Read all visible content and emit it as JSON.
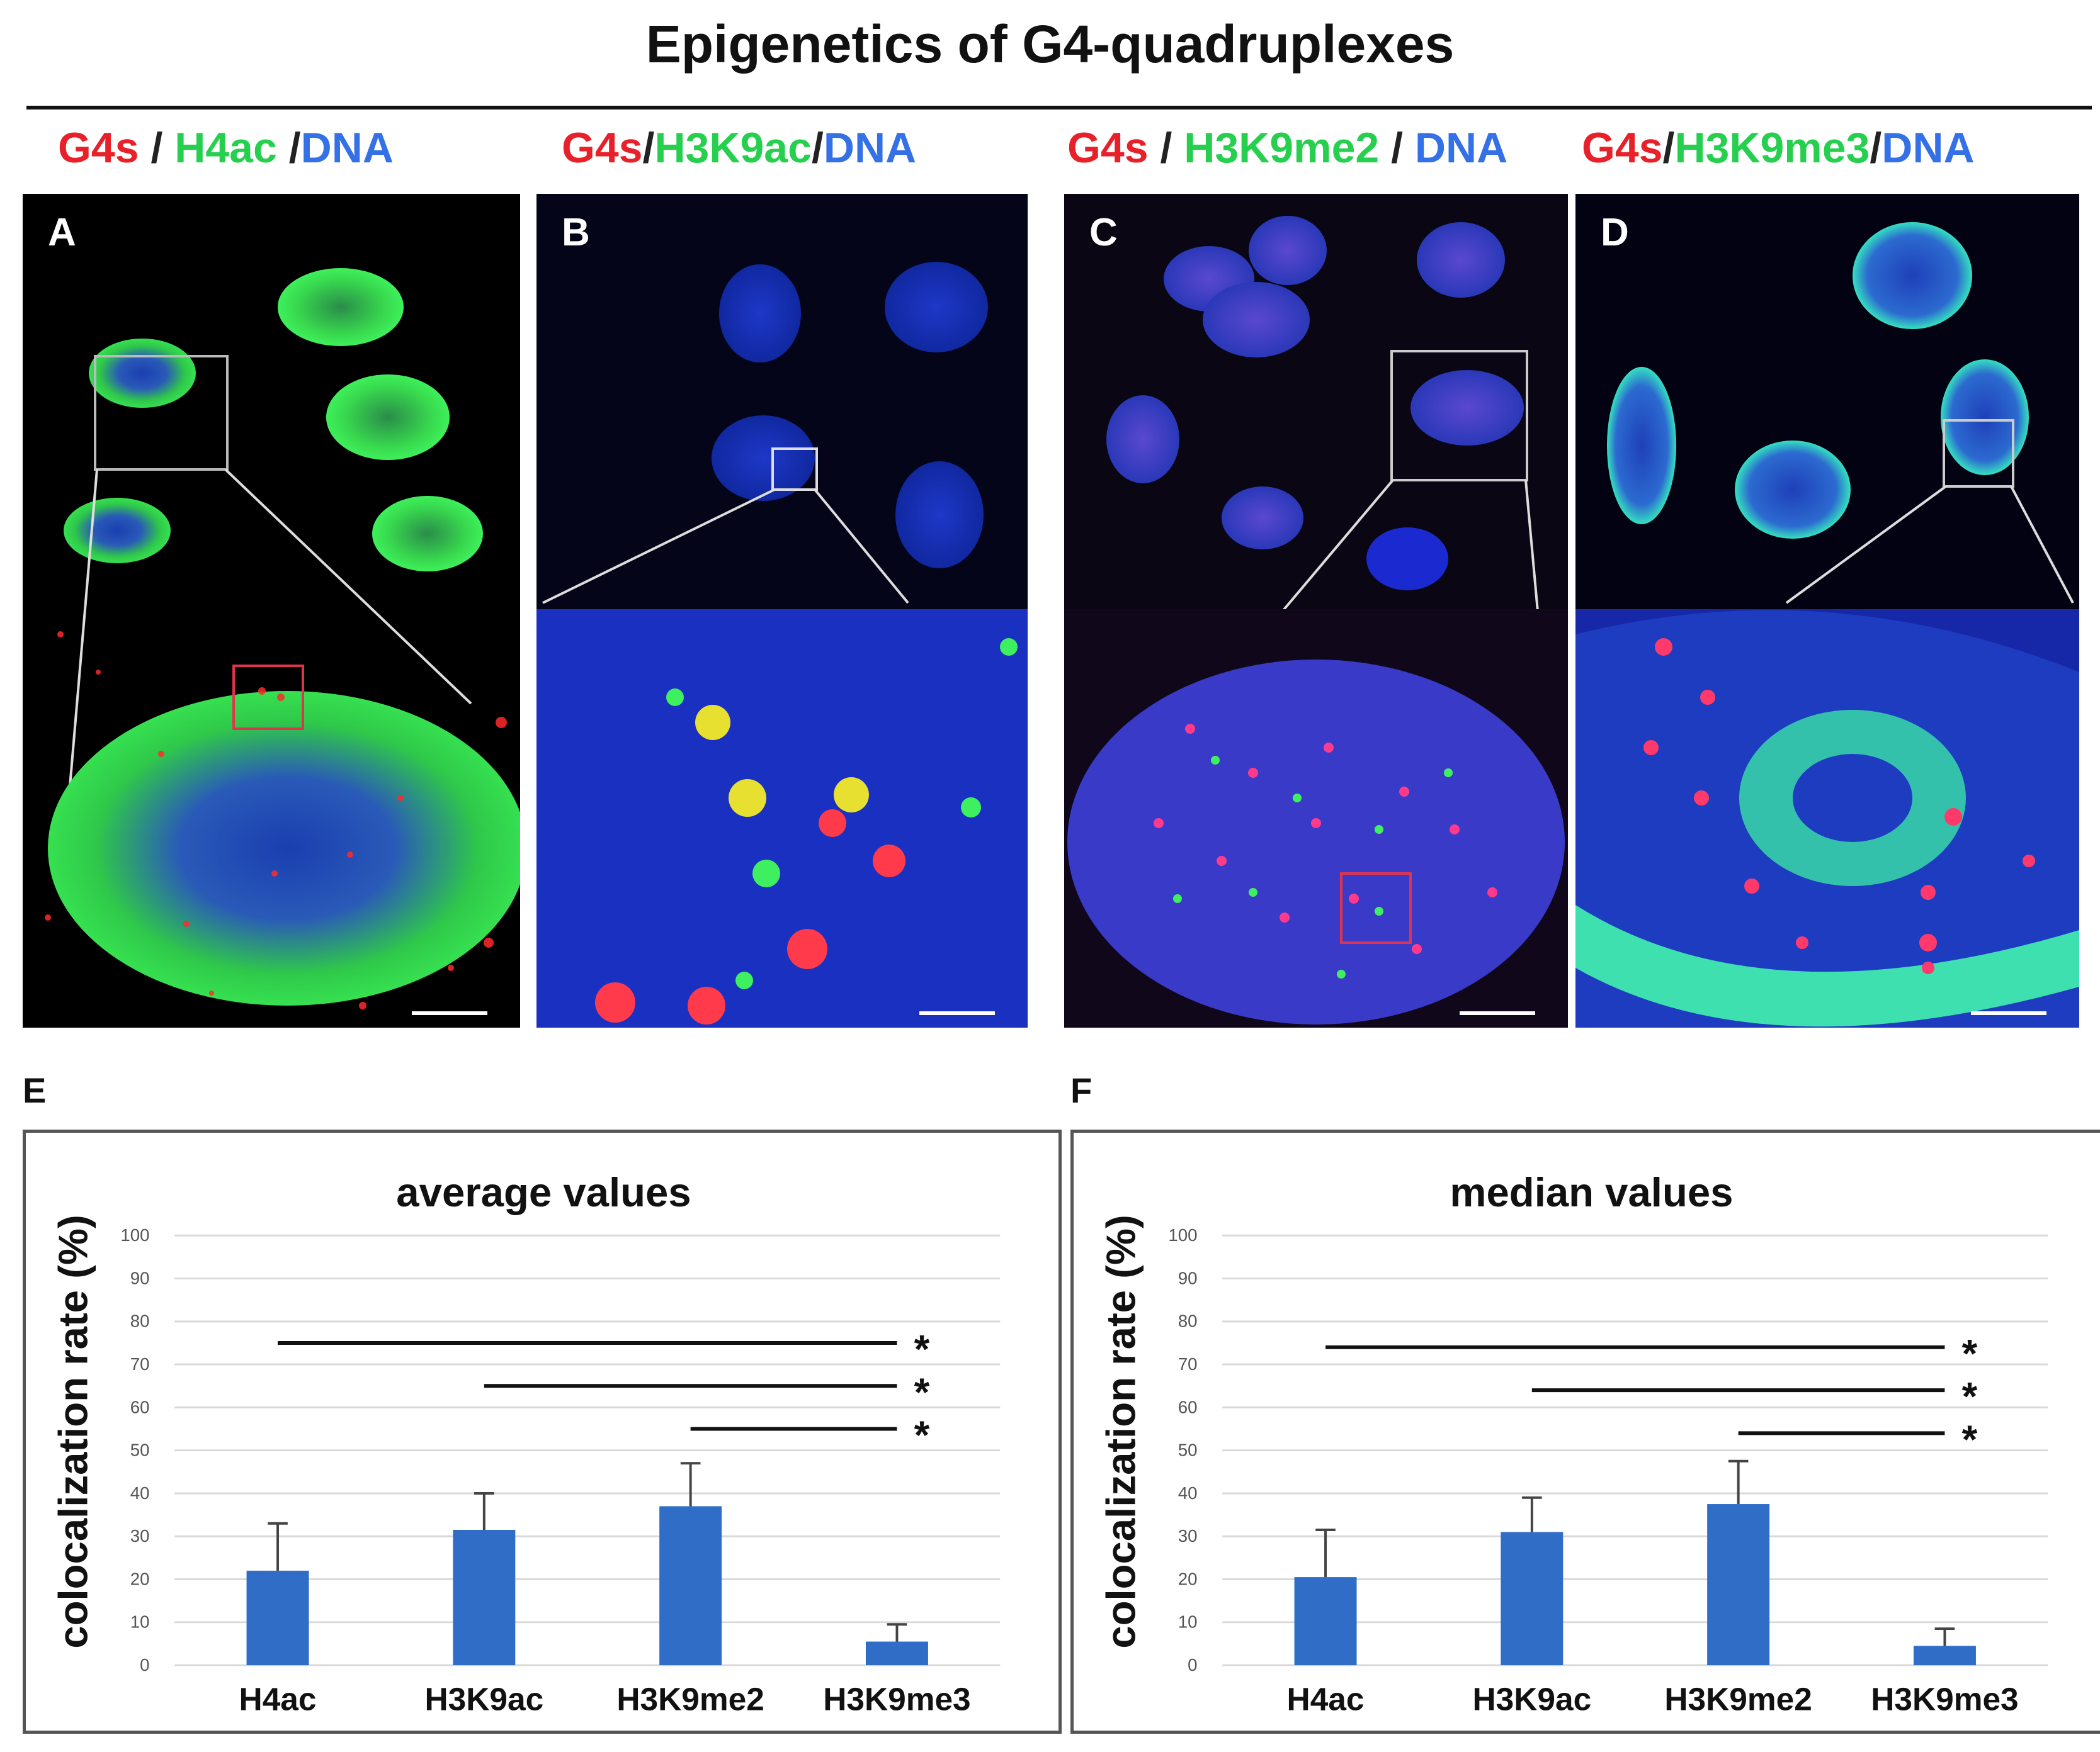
{
  "figure": {
    "title": "Epigenetics of G4-quadruplexes"
  },
  "panels": [
    {
      "letter": "A",
      "label": {
        "g4": "G4s",
        "sep1": "/",
        "mark": "H4ac",
        "sep2": "/",
        "dna": "DNA"
      }
    },
    {
      "letter": "B",
      "label": {
        "g4": "G4s",
        "sep1": "/",
        "mark": "H3K9ac",
        "sep2": "/",
        "dna": "DNA"
      }
    },
    {
      "letter": "C",
      "label": {
        "g4": "G4s",
        "sep1": "/",
        "mark": "H3K9me2",
        "sep2": "/",
        "dna": "DNA"
      }
    },
    {
      "letter": "D",
      "label": {
        "g4": "G4s",
        "sep1": "/",
        "mark": "H3K9me3",
        "sep2": "/",
        "dna": "DNA"
      }
    }
  ],
  "colors": {
    "g4": "#e8202a",
    "mark": "#26d04e",
    "dna": "#3470e6",
    "bar": "#2f6dc6",
    "grid": "#d9d9d9"
  },
  "chart_data": [
    {
      "letter": "E",
      "type": "bar",
      "title": "average values",
      "ylabel": "colocalization rate (%)",
      "xlabel": "",
      "categories": [
        "H4ac",
        "H3K9ac",
        "H3K9me2",
        "H3K9me3"
      ],
      "values": [
        22,
        31.5,
        37,
        5.5
      ],
      "errors": [
        11,
        8.5,
        10,
        4
      ],
      "ylim": [
        0,
        100
      ],
      "yticks": [
        "0",
        "10",
        "20",
        "30",
        "40",
        "50",
        "60",
        "70",
        "80",
        "90",
        "100"
      ],
      "grid": true,
      "significance": [
        {
          "from": "H4ac",
          "to": "H3K9me3",
          "y": 75,
          "label": "*"
        },
        {
          "from": "H3K9ac",
          "to": "H3K9me3",
          "y": 65,
          "label": "*"
        },
        {
          "from": "H3K9me2",
          "to": "H3K9me3",
          "y": 55,
          "label": "*"
        }
      ]
    },
    {
      "letter": "F",
      "type": "bar",
      "title": "median values",
      "ylabel": "colocalization rate (%)",
      "xlabel": "",
      "categories": [
        "H4ac",
        "H3K9ac",
        "H3K9me2",
        "H3K9me3"
      ],
      "values": [
        20.5,
        31,
        37.5,
        4.5
      ],
      "errors": [
        11,
        8,
        10,
        4
      ],
      "ylim": [
        0,
        100
      ],
      "yticks": [
        "0",
        "10",
        "20",
        "30",
        "40",
        "50",
        "60",
        "70",
        "80",
        "90",
        "100"
      ],
      "grid": true,
      "significance": [
        {
          "from": "H4ac",
          "to": "H3K9me3",
          "y": 74,
          "label": "*"
        },
        {
          "from": "H3K9ac",
          "to": "H3K9me3",
          "y": 64,
          "label": "*"
        },
        {
          "from": "H3K9me2",
          "to": "H3K9me3",
          "y": 54,
          "label": "*"
        }
      ]
    }
  ]
}
